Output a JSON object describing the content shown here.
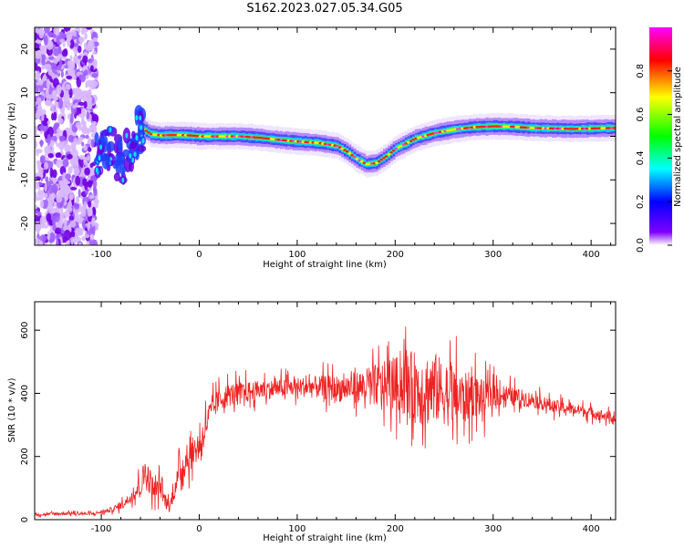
{
  "figure": {
    "title": "S162.2023.027.05.34.G05"
  },
  "colors": {
    "snr_line": "#ee2222",
    "axes": "#000000",
    "background": "#ffffff"
  },
  "chart_data": [
    {
      "type": "heatmap",
      "title": "",
      "xlabel": "Height of straight line (km)",
      "ylabel": "Frequency (Hz)",
      "xlim": [
        -168,
        425
      ],
      "ylim": [
        -25,
        25
      ],
      "x_ticks": [
        -100,
        0,
        100,
        200,
        300,
        400
      ],
      "x_tick_labels": [
        "-100",
        "0",
        "100",
        "200",
        "300",
        "400"
      ],
      "y_ticks": [
        -20,
        -10,
        0,
        10,
        20
      ],
      "y_tick_labels": [
        "-20",
        "-10",
        "0",
        "10",
        "20"
      ],
      "colorbar": {
        "label": "Normalized spectral amplitude",
        "range": [
          0,
          1
        ],
        "ticks": [
          0.0,
          0.2,
          0.4,
          0.6,
          0.8
        ],
        "tick_labels": [
          "0.0",
          "0.2",
          "0.4",
          "0.6",
          "0.8"
        ],
        "colormap": [
          "#ffffff",
          "#8000ff",
          "#0000ff",
          "#00ffff",
          "#00ff00",
          "#ffff00",
          "#ff0000",
          "#ff00ff"
        ]
      },
      "ridge": {
        "x": [
          -100,
          -90,
          -80,
          -70,
          -60,
          -50,
          -40,
          -30,
          -20,
          -10,
          0,
          20,
          40,
          60,
          80,
          100,
          120,
          140,
          150,
          160,
          170,
          180,
          190,
          200,
          220,
          240,
          260,
          280,
          300,
          320,
          340,
          360,
          380,
          400,
          420
        ],
        "y": [
          -5,
          -2,
          -6,
          -3,
          2,
          0.5,
          0.2,
          0.3,
          0.3,
          0.2,
          0,
          0,
          0,
          -0.3,
          -0.8,
          -1.2,
          -1.5,
          -2.2,
          -3.5,
          -5.2,
          -6.4,
          -6.1,
          -4.6,
          -2.8,
          -0.5,
          0.8,
          1.6,
          2.1,
          2.3,
          2.2,
          1.9,
          1.8,
          1.7,
          1.8,
          1.9
        ]
      },
      "noise_region_x": [
        -168,
        -105
      ]
    },
    {
      "type": "line",
      "title": "",
      "xlabel": "Height of straight line (km)",
      "ylabel": "SNR (10 * v/v)",
      "xlim": [
        -168,
        425
      ],
      "ylim": [
        0,
        690
      ],
      "x_ticks": [
        -100,
        0,
        100,
        200,
        300,
        400
      ],
      "x_tick_labels": [
        "-100",
        "0",
        "100",
        "200",
        "300",
        "400"
      ],
      "y_ticks": [
        0,
        200,
        400,
        600
      ],
      "y_tick_labels": [
        "0",
        "200",
        "400",
        "600"
      ],
      "series": [
        {
          "x": [
            -168,
            -150,
            -130,
            -110,
            -90,
            -80,
            -70,
            -60,
            -55,
            -50,
            -45,
            -40,
            -35,
            -30,
            -25,
            -20,
            -15,
            -10,
            -5,
            0,
            5,
            10,
            20,
            30,
            40,
            60,
            80,
            100,
            120,
            140,
            160,
            180,
            200,
            210,
            220,
            230,
            240,
            250,
            260,
            270,
            280,
            290,
            300,
            320,
            340,
            360,
            380,
            400,
            425
          ],
          "y": [
            15,
            18,
            20,
            18,
            30,
            45,
            70,
            110,
            150,
            120,
            90,
            110,
            60,
            40,
            100,
            150,
            180,
            200,
            220,
            230,
            280,
            330,
            380,
            395,
            400,
            410,
            415,
            420,
            420,
            415,
            420,
            425,
            430,
            430,
            420,
            410,
            420,
            400,
            390,
            380,
            400,
            380,
            400,
            390,
            380,
            360,
            350,
            340,
            320
          ],
          "amp": [
            6,
            8,
            8,
            8,
            12,
            20,
            30,
            60,
            90,
            70,
            50,
            60,
            40,
            30,
            50,
            70,
            80,
            80,
            80,
            80,
            80,
            70,
            60,
            60,
            60,
            50,
            50,
            50,
            60,
            70,
            80,
            110,
            140,
            170,
            190,
            200,
            190,
            170,
            160,
            140,
            120,
            100,
            70,
            50,
            40,
            35,
            30,
            30,
            25
          ]
        }
      ]
    }
  ]
}
